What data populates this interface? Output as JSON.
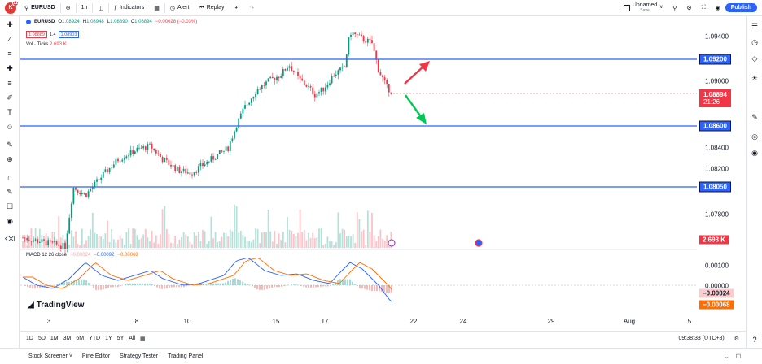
{
  "topbar": {
    "avatar_letter": "K",
    "avatar_badge": "11",
    "symbol": "EURUSD",
    "interval": "1h",
    "indicators_label": "Indicators",
    "alert_label": "Alert",
    "replay_label": "Replay",
    "layout_name": "Unnamed",
    "layout_status": "Save",
    "publish_label": "Publish"
  },
  "legend": {
    "ohlc": {
      "open_label": "O",
      "open": "1.08924",
      "high_label": "H",
      "high": "1.08948",
      "low_label": "L",
      "low": "1.08890",
      "close_label": "C",
      "close": "1.08894",
      "change": "−0.00028 (−0.03%)"
    },
    "bid": "1.08889",
    "spread": "1.4",
    "ask": "1.08903",
    "volume_label": "Vol · Ticks",
    "volume_value": "2.693 K",
    "macd_label": "MACD 12 26 close",
    "macd_hist": "−0.00024",
    "macd_line": "−0.00092",
    "macd_signal": "−0.00068"
  },
  "brand": "TradingView",
  "yaxis": {
    "labels": [
      "1.09400",
      "1.09000",
      "1.08400",
      "1.08200",
      "1.07800"
    ],
    "level_tags": [
      "1.09200",
      "1.08600",
      "1.08050"
    ],
    "price_tag": "1.08894",
    "countdown": "21:26",
    "volume_tag": "2.693 K",
    "macd_labels": [
      "0.00100",
      "0.00000"
    ],
    "macd_tags": [
      "−0.00024",
      "−0.00068"
    ]
  },
  "xaxis": {
    "labels": [
      "3",
      "8",
      "10",
      "15",
      "17",
      "22",
      "24",
      "29",
      "Aug",
      "5"
    ]
  },
  "rangebar": {
    "ranges": [
      "1D",
      "5D",
      "1M",
      "3M",
      "6M",
      "YTD",
      "1Y",
      "5Y",
      "All"
    ],
    "clock": "09:38:33 (UTC+8)"
  },
  "bottombar": {
    "tabs": [
      "Stock Screener",
      "Pine Editor",
      "Strategy Tester",
      "Trading Panel"
    ]
  },
  "colors": {
    "up": "#089981",
    "down": "#f23645",
    "level_line": "#2962ff",
    "macd": "#2962ff",
    "signal": "#ff6d00"
  }
}
